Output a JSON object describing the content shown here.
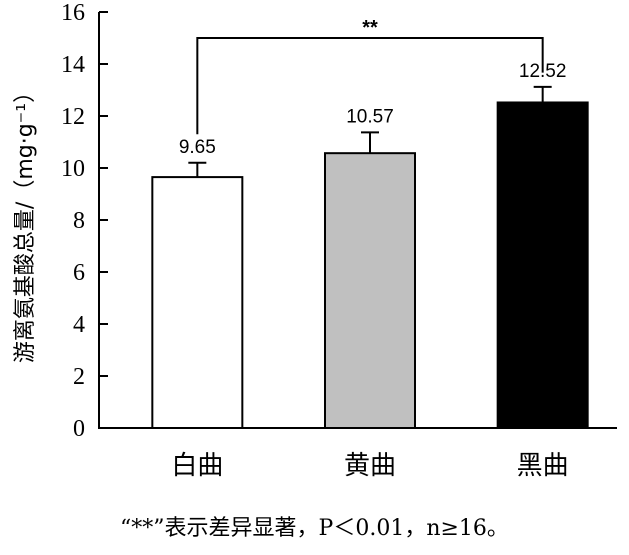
{
  "chart_data": {
    "type": "bar",
    "categories": [
      "白曲",
      "黄曲",
      "黑曲"
    ],
    "values": [
      9.65,
      10.57,
      12.52
    ],
    "errors": [
      0.55,
      0.8,
      0.6
    ],
    "value_labels": [
      "9.65",
      "10.57",
      "12.52"
    ],
    "bar_colors": [
      "#ffffff",
      "#c0c0c0",
      "#000000"
    ],
    "ylabel": "游离氨基酸总量/（mg·g⁻¹）",
    "ylim": [
      0,
      16
    ],
    "yticks": [
      "0",
      "2",
      "4",
      "6",
      "8",
      "10",
      "12",
      "14",
      "16"
    ],
    "grid": false,
    "significance": {
      "from": 0,
      "to": 2,
      "label": "**",
      "level": 15.0
    }
  },
  "footnote": "“**”表示差异显著，P＜0.01，n≥16。"
}
